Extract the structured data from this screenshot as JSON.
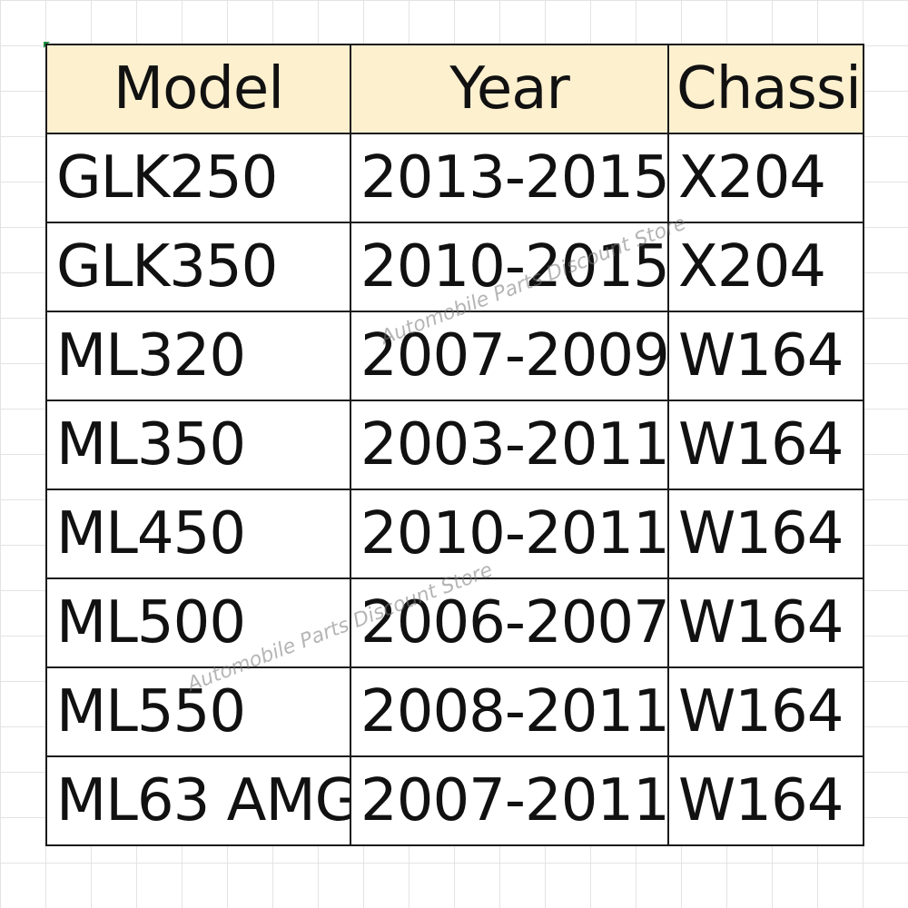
{
  "table": {
    "headers": {
      "model": "Model",
      "year": "Year",
      "chassis": "Chassis"
    },
    "rows": [
      {
        "model": "GLK250",
        "year": "2013-2015",
        "chassis": "X204"
      },
      {
        "model": "GLK350",
        "year": "2010-2015",
        "chassis": "X204"
      },
      {
        "model": "ML320",
        "year": "2007-2009",
        "chassis": "W164"
      },
      {
        "model": "ML350",
        "year": "2003-2011",
        "chassis": "W164"
      },
      {
        "model": "ML450",
        "year": "2010-2011",
        "chassis": "W164"
      },
      {
        "model": "ML500",
        "year": "2006-2007",
        "chassis": "W164"
      },
      {
        "model": "ML550",
        "year": "2008-2011",
        "chassis": "W164"
      },
      {
        "model": "ML63 AMG",
        "year": "2007-2011",
        "chassis": "W164"
      }
    ]
  },
  "watermarks": [
    "Automobile Parts Discount Store",
    "Automobile Parts Discount Store"
  ],
  "colors": {
    "header_fill": "#fdf0cf",
    "border": "#1a1a1a",
    "grid": "#e3e3e3"
  }
}
